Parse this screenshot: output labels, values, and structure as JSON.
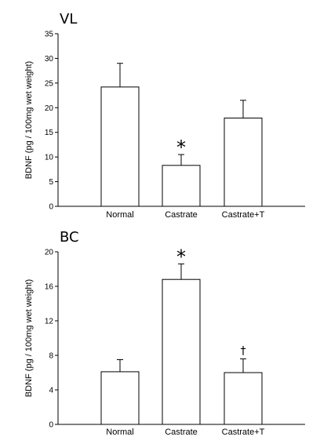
{
  "chart_data": [
    {
      "type": "bar",
      "title": "VL",
      "ylabel": "BDNF  (pg / 100mg  wet  weight)",
      "xlabel": "",
      "categories": [
        "Normal",
        "Castrate",
        "Castrate+T"
      ],
      "values": [
        24.2,
        8.3,
        17.9
      ],
      "errors": [
        4.8,
        2.2,
        3.6
      ],
      "annotations": [
        "",
        "*",
        ""
      ],
      "ylim": [
        0,
        35
      ],
      "yticks": [
        0,
        5,
        10,
        15,
        20,
        25,
        30,
        35
      ],
      "ytick_labels": [
        "0",
        "5",
        "10",
        "15",
        "20",
        "25",
        "30",
        "35"
      ],
      "grid": false,
      "legend": "none"
    },
    {
      "type": "bar",
      "title": "BC",
      "ylabel": "BDNF  (pg / 100mg  wet  weight)",
      "xlabel": "",
      "categories": [
        "Normal",
        "Castrate",
        "Castrate+T"
      ],
      "values": [
        6.1,
        16.8,
        6.0
      ],
      "errors": [
        1.4,
        1.8,
        1.6
      ],
      "annotations": [
        "",
        "*",
        "†"
      ],
      "ylim": [
        0,
        20
      ],
      "yticks": [
        0,
        4,
        8,
        12,
        16,
        20
      ],
      "ytick_labels": [
        "0",
        "4",
        "8",
        "12",
        "16",
        "20"
      ],
      "grid": false,
      "legend": "none"
    }
  ]
}
